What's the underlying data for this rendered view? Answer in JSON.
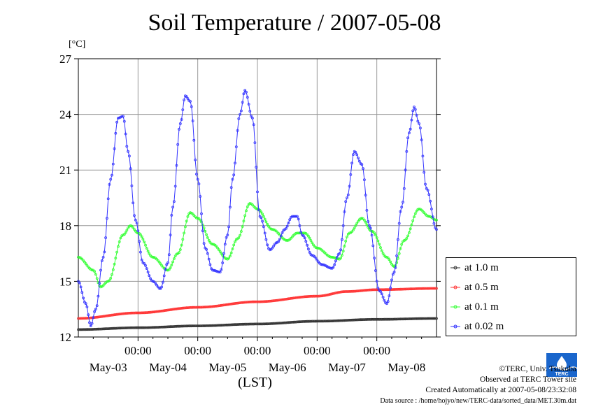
{
  "chart_data": {
    "type": "line",
    "title": "Soil Temperature / 2007-05-08",
    "ylabel_unit": "[°C]",
    "xlabel": "(LST)",
    "ylim": [
      12,
      27
    ],
    "yticks": [
      "12",
      "15",
      "18",
      "21",
      "24",
      "27"
    ],
    "x_tick_labels": [
      "00:00",
      "00:00",
      "00:00",
      "00:00",
      "00:00"
    ],
    "x_date_labels": [
      "May-03",
      "May-04",
      "May-05",
      "May-06",
      "May-07",
      "May-08"
    ],
    "x_hours_range": [
      0,
      144
    ],
    "x_units": "hours from 2007-05-03 00:00 LST",
    "grid": true,
    "legend_position": "right",
    "series": [
      {
        "name": "at 1.0 m",
        "color": "#333333",
        "points": [
          [
            0,
            12.4
          ],
          [
            24,
            12.5
          ],
          [
            48,
            12.6
          ],
          [
            72,
            12.7
          ],
          [
            96,
            12.85
          ],
          [
            120,
            12.95
          ],
          [
            144,
            13.0
          ]
        ]
      },
      {
        "name": "at 0.5 m",
        "color": "#ff3333",
        "points": [
          [
            0,
            13.0
          ],
          [
            24,
            13.3
          ],
          [
            48,
            13.6
          ],
          [
            72,
            13.9
          ],
          [
            96,
            14.2
          ],
          [
            108,
            14.45
          ],
          [
            120,
            14.55
          ],
          [
            144,
            14.62
          ]
        ]
      },
      {
        "name": "at 0.1 m",
        "color": "#33ff33",
        "points": [
          [
            0,
            16.3
          ],
          [
            6,
            15.6
          ],
          [
            9,
            14.7
          ],
          [
            12,
            15.0
          ],
          [
            18,
            17.5
          ],
          [
            21,
            18.0
          ],
          [
            24,
            17.6
          ],
          [
            30,
            16.3
          ],
          [
            36,
            15.6
          ],
          [
            40,
            16.5
          ],
          [
            45,
            18.7
          ],
          [
            48,
            18.4
          ],
          [
            54,
            17.0
          ],
          [
            60,
            16.2
          ],
          [
            64,
            17.3
          ],
          [
            69,
            19.2
          ],
          [
            72,
            18.9
          ],
          [
            78,
            17.8
          ],
          [
            84,
            17.2
          ],
          [
            88,
            17.6
          ],
          [
            91,
            17.6
          ],
          [
            96,
            16.8
          ],
          [
            102,
            16.3
          ],
          [
            105,
            16.2
          ],
          [
            109,
            17.6
          ],
          [
            114,
            18.4
          ],
          [
            118,
            17.7
          ],
          [
            124,
            16.3
          ],
          [
            127,
            15.8
          ],
          [
            131,
            17.2
          ],
          [
            137,
            18.9
          ],
          [
            141,
            18.5
          ],
          [
            144,
            18.3
          ]
        ]
      },
      {
        "name": "at 0.02 m",
        "color": "#3333ff",
        "points": [
          [
            0,
            15.0
          ],
          [
            3,
            13.8
          ],
          [
            5,
            12.6
          ],
          [
            7,
            13.5
          ],
          [
            10,
            16.3
          ],
          [
            13,
            20.5
          ],
          [
            16,
            23.8
          ],
          [
            18,
            23.9
          ],
          [
            20,
            22.0
          ],
          [
            23,
            18.3
          ],
          [
            26,
            16.0
          ],
          [
            30,
            15.0
          ],
          [
            33,
            14.6
          ],
          [
            36,
            16.0
          ],
          [
            38,
            19.0
          ],
          [
            41,
            23.5
          ],
          [
            43,
            25.0
          ],
          [
            45,
            24.7
          ],
          [
            48,
            20.5
          ],
          [
            51,
            16.8
          ],
          [
            54,
            15.6
          ],
          [
            57,
            15.5
          ],
          [
            60,
            17.5
          ],
          [
            62,
            20.5
          ],
          [
            65,
            24.0
          ],
          [
            67,
            25.3
          ],
          [
            70,
            23.8
          ],
          [
            73,
            18.5
          ],
          [
            77,
            16.7
          ],
          [
            80,
            17.1
          ],
          [
            83,
            17.8
          ],
          [
            86,
            18.5
          ],
          [
            88,
            18.5
          ],
          [
            90,
            17.5
          ],
          [
            94,
            16.4
          ],
          [
            98,
            15.9
          ],
          [
            102,
            15.7
          ],
          [
            105,
            16.5
          ],
          [
            108,
            19.5
          ],
          [
            111,
            22.0
          ],
          [
            114,
            21.3
          ],
          [
            117,
            18.0
          ],
          [
            121,
            14.5
          ],
          [
            124,
            13.8
          ],
          [
            127,
            15.5
          ],
          [
            130,
            19.0
          ],
          [
            133,
            23.0
          ],
          [
            135,
            24.4
          ],
          [
            137,
            23.5
          ],
          [
            140,
            20.0
          ],
          [
            144,
            17.8
          ]
        ]
      }
    ]
  },
  "credits": {
    "line1": "©TERC, Univ. Tsukuba",
    "line2": "Observed at TERC Tower site",
    "line3": "Created Automatically at 2007-05-08/23:32:08",
    "line4": "Data source : /home/hojyo/new/TERC-data/sorted_data/MET.30m.dat"
  },
  "logo": {
    "text": "TERC",
    "color": "#1a66cc"
  }
}
